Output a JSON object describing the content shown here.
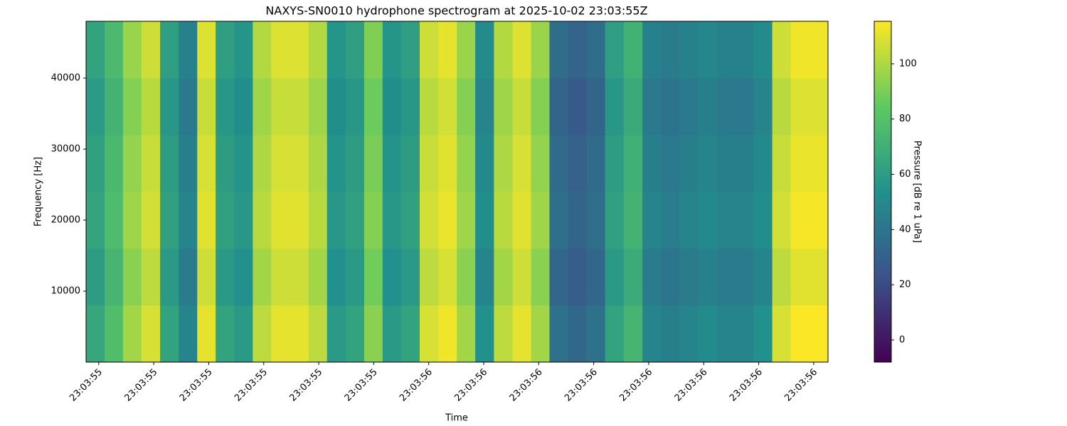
{
  "chart_data": {
    "type": "heatmap",
    "title": "NAXYS-SN0010 hydrophone spectrogram at 2025-10-02 23:03:55Z",
    "x_label": "Time",
    "y_label": "Frequency [Hz]",
    "colorbar_label": "Pressure [dB re 1 uPa]",
    "colormap": "viridis",
    "xlim": [
      0.427,
      1.776
    ],
    "xticks": [
      {
        "value": 0.45,
        "label": "23:03:55"
      },
      {
        "value": 0.55,
        "label": "23:03:55"
      },
      {
        "value": 0.65,
        "label": "23:03:55"
      },
      {
        "value": 0.75,
        "label": "23:03:55"
      },
      {
        "value": 0.85,
        "label": "23:03:55"
      },
      {
        "value": 0.95,
        "label": "23:03:55"
      },
      {
        "value": 1.05,
        "label": "23:03:56"
      },
      {
        "value": 1.15,
        "label": "23:03:56"
      },
      {
        "value": 1.25,
        "label": "23:03:56"
      },
      {
        "value": 1.35,
        "label": "23:03:56"
      },
      {
        "value": 1.45,
        "label": "23:03:56"
      },
      {
        "value": 1.55,
        "label": "23:03:56"
      },
      {
        "value": 1.65,
        "label": "23:03:56"
      },
      {
        "value": 1.75,
        "label": "23:03:56"
      }
    ],
    "ylim": [
      0,
      48000
    ],
    "yticks": [
      10000,
      20000,
      30000,
      40000
    ],
    "clim": [
      -8,
      115.4
    ],
    "cticks": [
      0,
      20,
      40,
      60,
      80,
      100
    ],
    "x": [
      0.444,
      0.478,
      0.511,
      0.545,
      0.579,
      0.613,
      0.646,
      0.68,
      0.714,
      0.747,
      0.781,
      0.815,
      0.849,
      0.882,
      0.916,
      0.95,
      0.983,
      1.017,
      1.051,
      1.085,
      1.118,
      1.152,
      1.186,
      1.22,
      1.253,
      1.287,
      1.321,
      1.354,
      1.388,
      1.422,
      1.456,
      1.489,
      1.523,
      1.557,
      1.591,
      1.624,
      1.658,
      1.692,
      1.725,
      1.759
    ],
    "y": [
      4000,
      12000,
      20000,
      28000,
      36000,
      44000
    ],
    "z": [
      [
        65,
        78,
        98,
        108,
        63,
        48,
        111,
        63,
        58,
        103,
        111,
        111,
        103,
        58,
        63,
        93,
        58,
        63,
        108,
        113,
        98,
        53,
        103,
        111,
        98,
        38,
        33,
        38,
        63,
        73,
        48,
        45,
        48,
        51,
        48,
        48,
        53,
        108,
        115,
        115
      ],
      [
        60,
        73,
        93,
        103,
        58,
        43,
        106,
        58,
        53,
        98,
        106,
        106,
        98,
        53,
        58,
        88,
        53,
        58,
        103,
        108,
        93,
        48,
        98,
        106,
        93,
        33,
        28,
        33,
        58,
        68,
        43,
        40,
        43,
        46,
        43,
        43,
        48,
        103,
        110,
        110
      ],
      [
        64,
        77,
        97,
        107,
        62,
        47,
        110,
        62,
        57,
        102,
        110,
        110,
        102,
        57,
        62,
        92,
        57,
        62,
        107,
        112,
        97,
        52,
        102,
        110,
        97,
        37,
        32,
        37,
        62,
        72,
        47,
        44,
        47,
        50,
        47,
        47,
        52,
        107,
        114,
        114
      ],
      [
        62,
        75,
        95,
        105,
        60,
        45,
        108,
        60,
        55,
        100,
        108,
        108,
        100,
        55,
        60,
        90,
        55,
        60,
        105,
        110,
        95,
        50,
        100,
        108,
        95,
        35,
        30,
        35,
        60,
        70,
        45,
        42,
        45,
        48,
        45,
        45,
        50,
        105,
        112,
        112
      ],
      [
        59,
        72,
        92,
        102,
        57,
        42,
        105,
        57,
        52,
        97,
        105,
        105,
        97,
        52,
        57,
        87,
        52,
        57,
        102,
        107,
        92,
        47,
        97,
        105,
        92,
        32,
        27,
        32,
        57,
        67,
        42,
        39,
        42,
        45,
        42,
        42,
        47,
        102,
        109,
        109
      ],
      [
        63,
        76,
        96,
        106,
        61,
        46,
        109,
        61,
        56,
        101,
        109,
        109,
        101,
        56,
        61,
        91,
        56,
        61,
        106,
        111,
        96,
        51,
        101,
        109,
        96,
        36,
        31,
        36,
        61,
        71,
        46,
        43,
        46,
        49,
        46,
        46,
        51,
        106,
        113,
        113
      ]
    ]
  }
}
